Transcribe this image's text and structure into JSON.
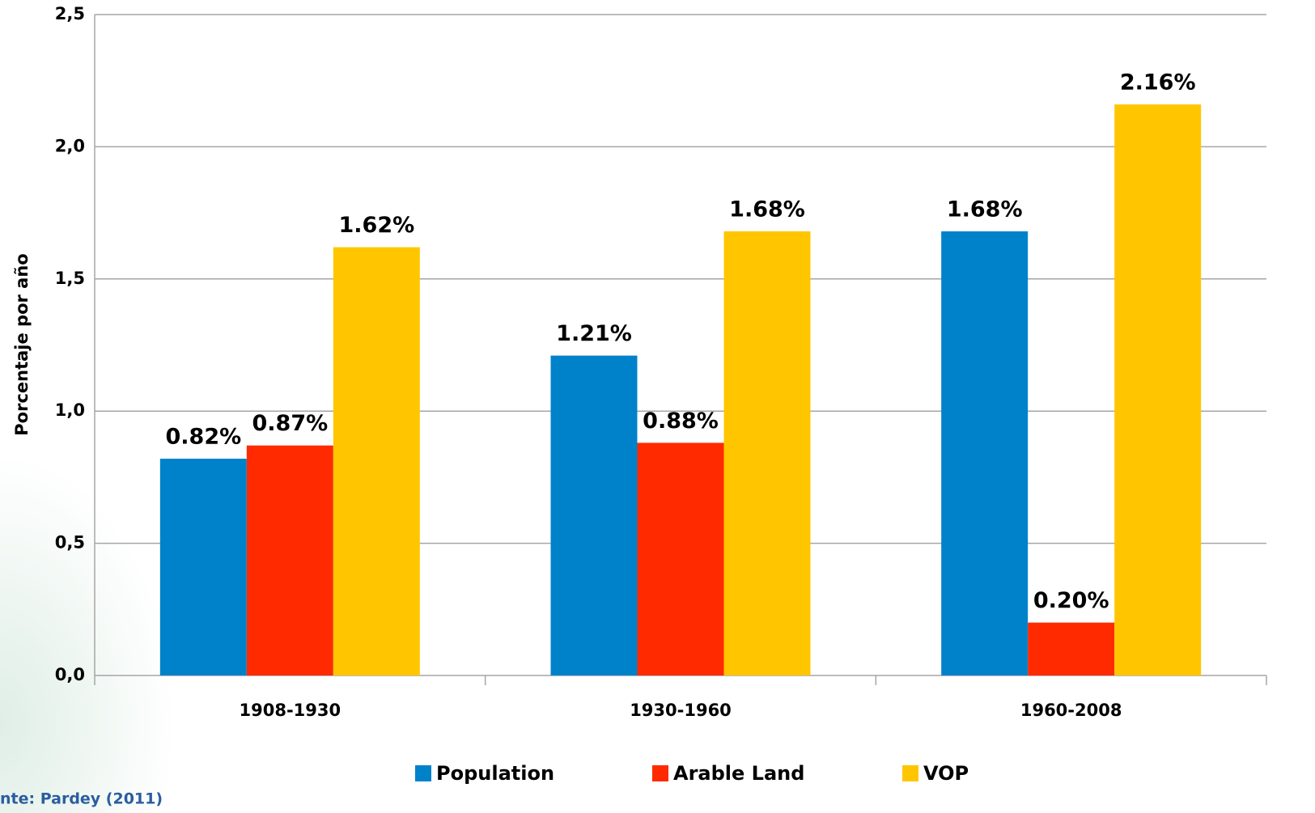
{
  "chart_data": {
    "type": "bar",
    "y_label": "Porcentaje por año",
    "source": "nte: Pardey  (2011)",
    "categories": [
      "1908-1930",
      "1930-1960",
      "1960-2008"
    ],
    "series": [
      {
        "name": "Population",
        "color": "#0082ca",
        "values": [
          0.82,
          1.21,
          1.68
        ],
        "value_labels": [
          "0.82%",
          "1.21%",
          "1.68%"
        ]
      },
      {
        "name": "Arable Land",
        "color": "#ff2a00",
        "values": [
          0.87,
          0.88,
          0.2
        ],
        "value_labels": [
          "0.87%",
          "0.88%",
          "0.20%"
        ]
      },
      {
        "name": "VOP",
        "color": "#ffc600",
        "values": [
          1.62,
          1.68,
          2.16
        ],
        "value_labels": [
          "1.62%",
          "1.68%",
          "2.16%"
        ]
      }
    ],
    "ylim": [
      0,
      2.5
    ],
    "yticks": [
      {
        "value": 0,
        "label": "0,0"
      },
      {
        "value": 0.5,
        "label": "0,5"
      },
      {
        "value": 1,
        "label": "1,0"
      },
      {
        "value": 1.5,
        "label": "1,5"
      },
      {
        "value": 2,
        "label": "2,0"
      },
      {
        "value": 2.5,
        "label": "2,5"
      }
    ],
    "grid": true
  }
}
